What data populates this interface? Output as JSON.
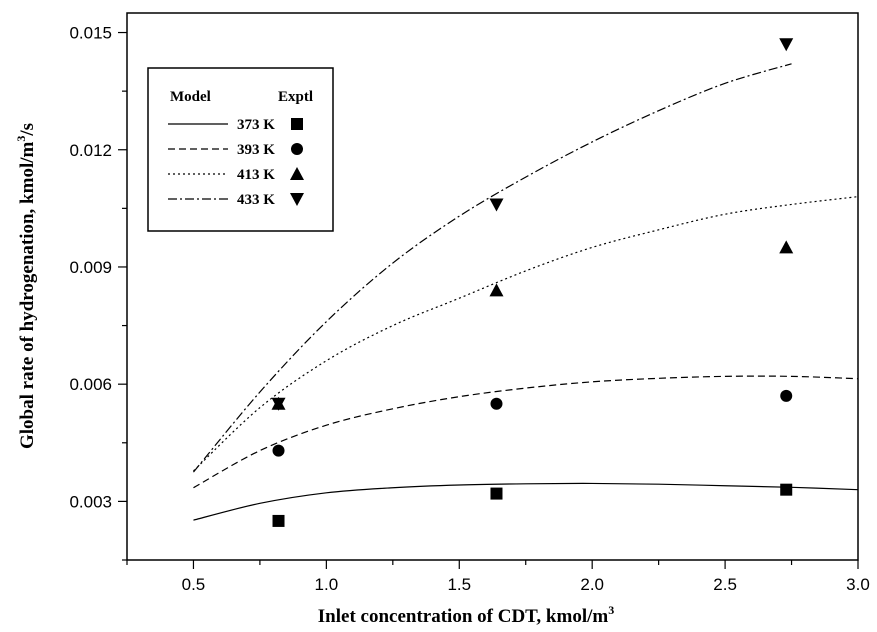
{
  "chart_data": {
    "type": "line",
    "xlabel": "Inlet concentration of CDT, kmol/m",
    "xlabel_sup": "3",
    "ylabel": "Global rate of hydrogenation, kmol/m",
    "ylabel_sup": "3",
    "ylabel_suffix": "/s",
    "xlim": [
      0.25,
      3.0
    ],
    "ylim": [
      0.0015,
      0.0155
    ],
    "x_ticks": [
      0.5,
      1.0,
      1.5,
      2.0,
      2.5,
      3.0
    ],
    "x_tick_labels": [
      "0.5",
      "1.0",
      "1.5",
      "2.0",
      "2.5",
      "3.0"
    ],
    "y_ticks": [
      0.003,
      0.006,
      0.009,
      0.012,
      0.015
    ],
    "y_tick_labels": [
      "0.003",
      "0.006",
      "0.009",
      "0.012",
      "0.015"
    ],
    "grid": false,
    "legend": {
      "placement": "top-left",
      "model_header": "Model",
      "exptl_header": "Exptl"
    },
    "series": [
      {
        "name": "373 K",
        "line_style": "solid",
        "marker": "square",
        "model_x": [
          0.5,
          0.75,
          1.0,
          1.25,
          1.5,
          1.75,
          2.0,
          2.25,
          2.5,
          2.75,
          3.0
        ],
        "model_y": [
          0.00252,
          0.00295,
          0.00322,
          0.00335,
          0.00342,
          0.00345,
          0.00346,
          0.00344,
          0.0034,
          0.00336,
          0.0033
        ],
        "exptl_x": [
          0.82,
          1.64,
          2.73
        ],
        "exptl_y": [
          0.0025,
          0.0032,
          0.0033
        ]
      },
      {
        "name": "393 K",
        "line_style": "dashed",
        "marker": "circle",
        "model_x": [
          0.5,
          0.75,
          1.0,
          1.25,
          1.5,
          1.75,
          2.0,
          2.25,
          2.5,
          2.75,
          3.0
        ],
        "model_y": [
          0.00335,
          0.0043,
          0.00495,
          0.00537,
          0.00568,
          0.0059,
          0.00606,
          0.00615,
          0.0062,
          0.0062,
          0.00614
        ],
        "exptl_x": [
          0.82,
          1.64,
          2.73
        ],
        "exptl_y": [
          0.0043,
          0.0055,
          0.0057
        ]
      },
      {
        "name": "413 K",
        "line_style": "dotted",
        "marker": "triangle-up",
        "model_x": [
          0.5,
          0.75,
          1.0,
          1.25,
          1.5,
          1.75,
          2.0,
          2.25,
          2.5,
          2.75,
          3.0
        ],
        "model_y": [
          0.00378,
          0.0054,
          0.0066,
          0.0075,
          0.0082,
          0.0089,
          0.0095,
          0.00995,
          0.01035,
          0.0106,
          0.0108
        ],
        "exptl_x": [
          0.82,
          1.64,
          2.73
        ],
        "exptl_y": [
          0.0055,
          0.0084,
          0.0095
        ]
      },
      {
        "name": "433 K",
        "line_style": "dashdot",
        "marker": "triangle-down",
        "model_x": [
          0.5,
          0.75,
          1.0,
          1.25,
          1.5,
          1.75,
          2.0,
          2.25,
          2.5,
          2.75
        ],
        "model_y": [
          0.00375,
          0.0058,
          0.0076,
          0.0091,
          0.0103,
          0.0113,
          0.0122,
          0.013,
          0.0137,
          0.0142
        ],
        "exptl_x": [
          0.82,
          1.64,
          2.73
        ],
        "exptl_y": [
          0.0055,
          0.0106,
          0.0147
        ]
      }
    ]
  }
}
